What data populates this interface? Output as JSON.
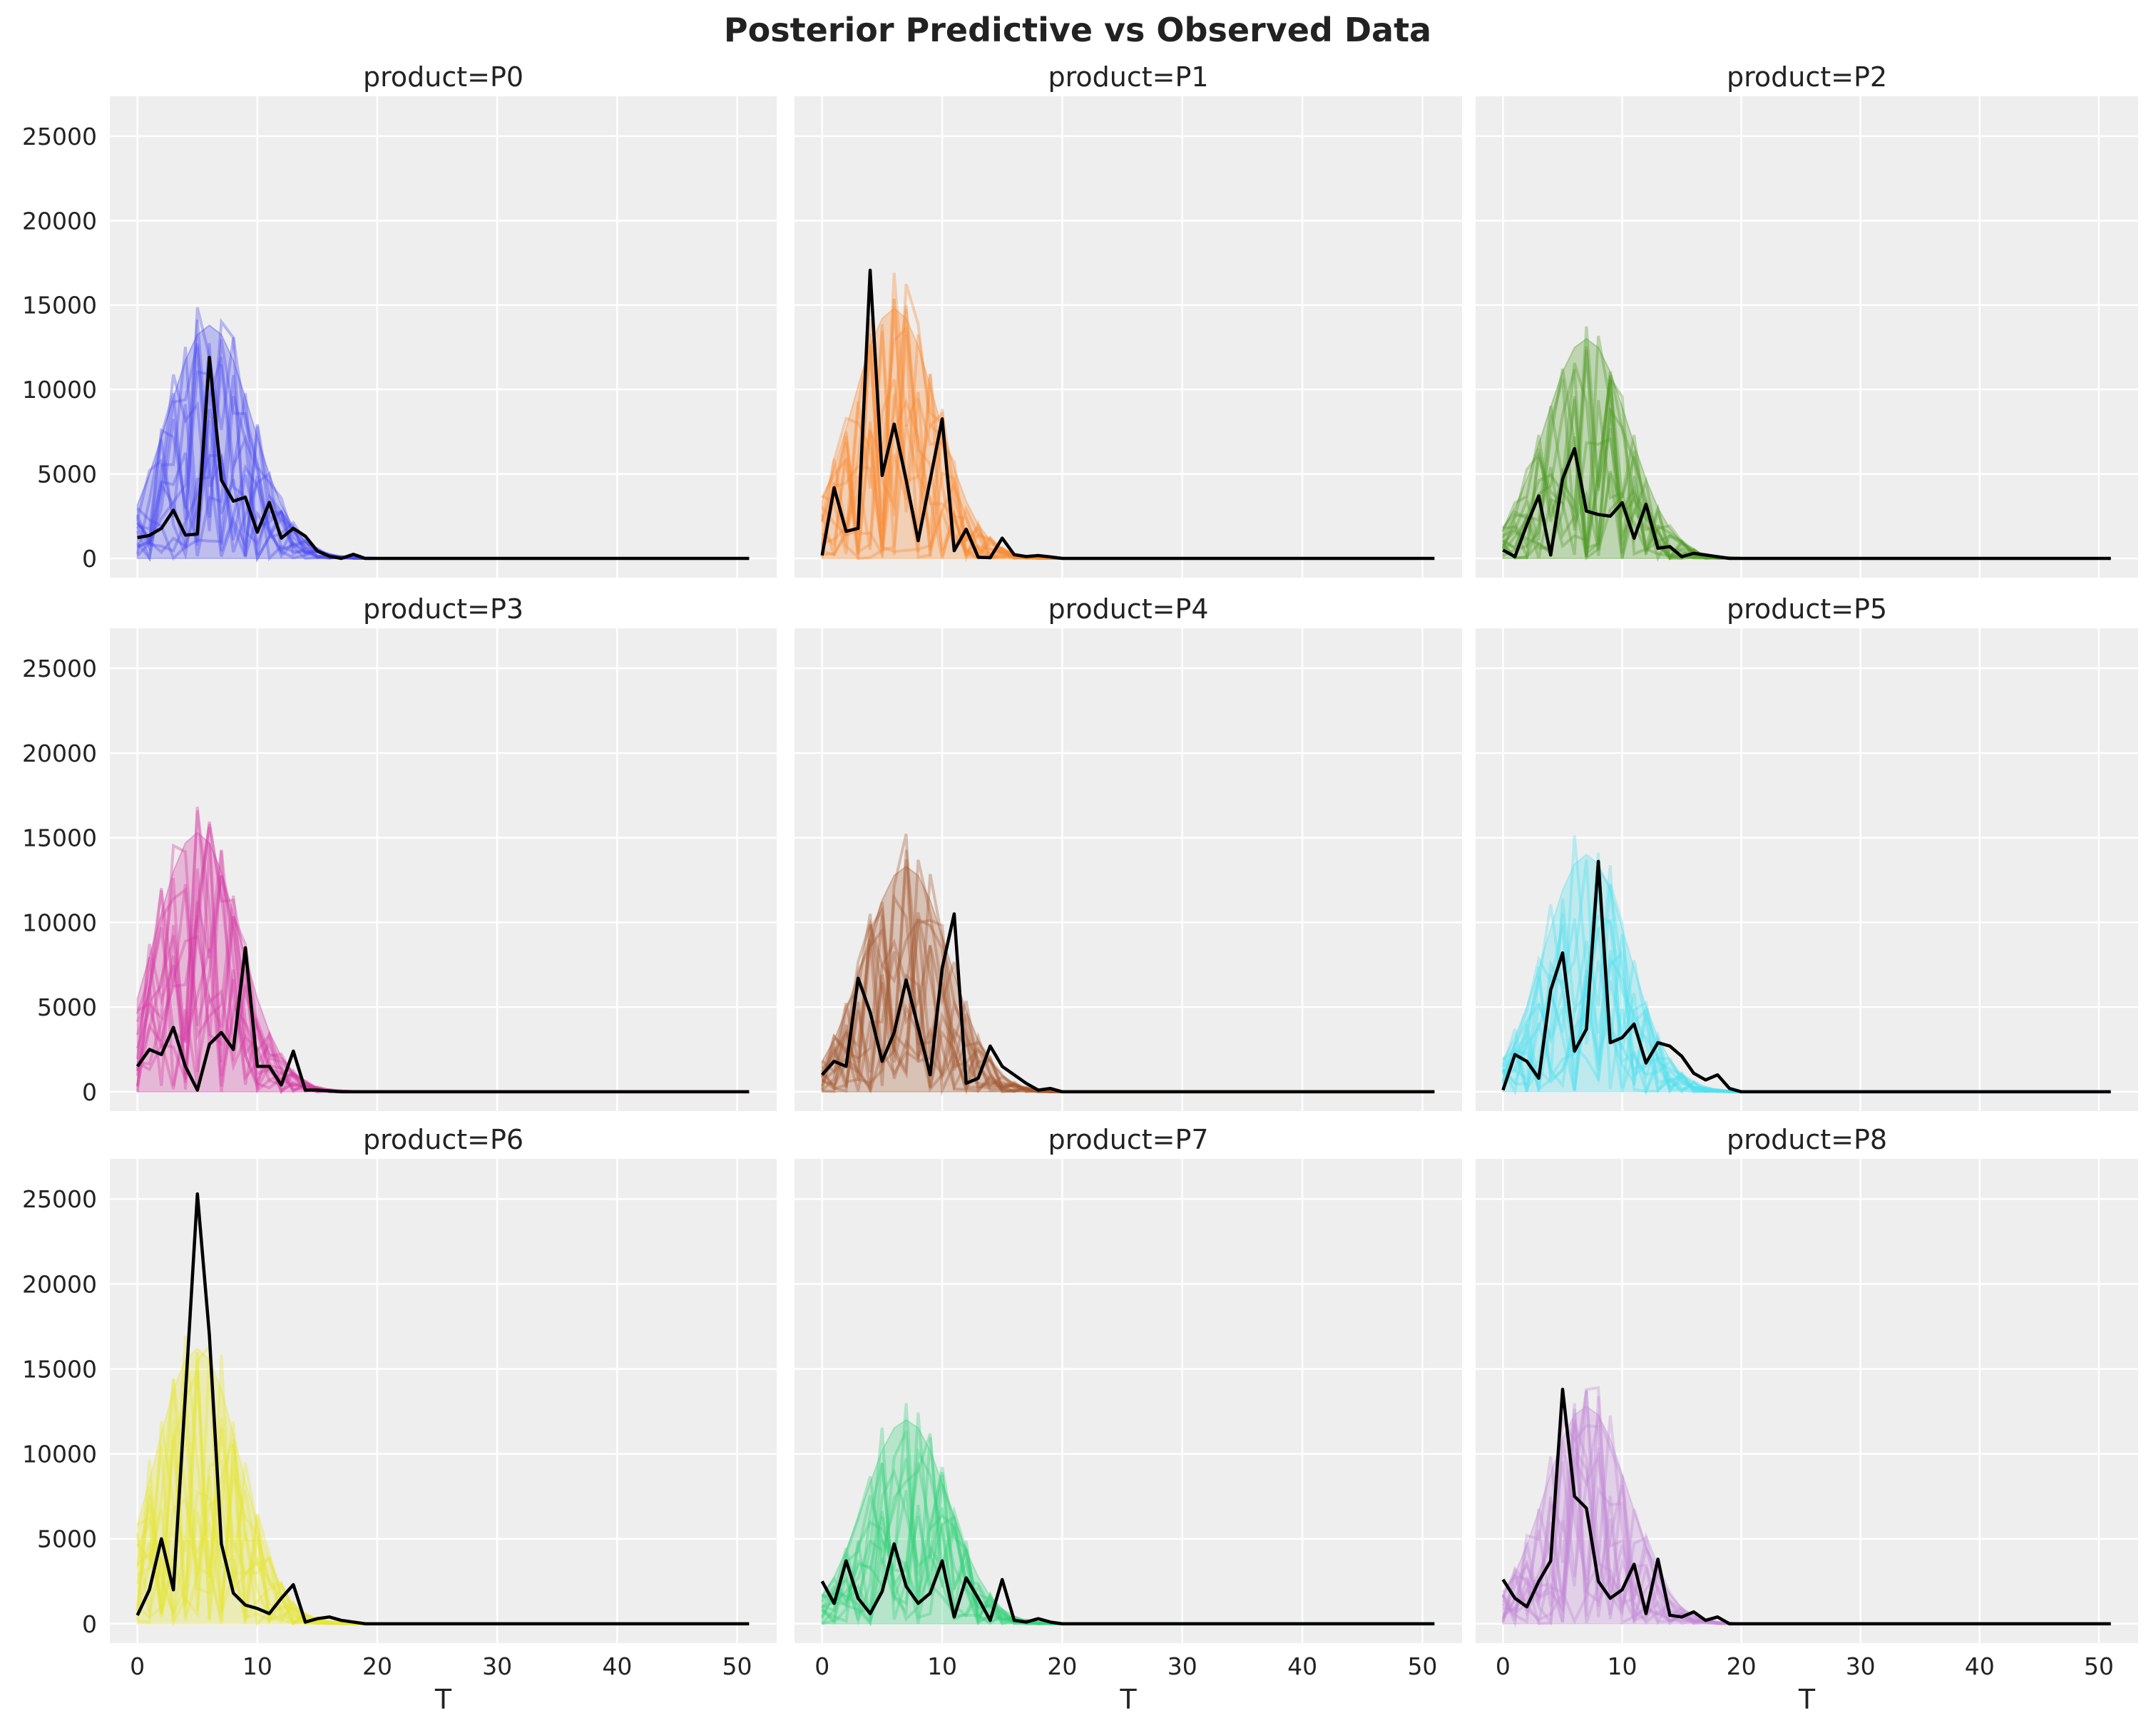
{
  "chart_data": {
    "type": "line",
    "title": "Posterior Predictive vs Observed Data",
    "xlabel": "T",
    "xlim": [
      -2.3,
      53.3
    ],
    "ylim": [
      -1140,
      27360
    ],
    "x_ticks": [
      "0",
      "10",
      "20",
      "30",
      "40",
      "50"
    ],
    "y_ticks": [
      "0",
      "5000",
      "10000",
      "15000",
      "20000",
      "25000"
    ],
    "grid": true,
    "observed_color": "#000000",
    "background_color": "#eeeeee",
    "t": [
      0,
      1,
      2,
      3,
      4,
      5,
      6,
      7,
      8,
      9,
      10,
      11,
      12,
      13,
      14,
      15,
      16,
      17,
      18,
      19,
      20,
      21,
      22,
      23,
      24,
      25,
      26,
      27,
      28,
      29,
      30,
      31,
      32,
      33,
      34,
      35,
      36,
      37,
      38,
      39,
      40,
      41,
      42,
      43,
      44,
      45,
      46,
      47,
      48,
      49,
      50,
      51
    ],
    "panels": [
      {
        "title": "product=P0",
        "color": "#4b4bf0",
        "observed": [
          1230,
          1360,
          1780,
          2850,
          1380,
          1440,
          11900,
          4640,
          3390,
          3620,
          1550,
          3310,
          1200,
          1780,
          1320,
          440,
          130,
          0,
          240,
          0,
          0,
          0,
          0,
          0,
          0,
          0,
          0,
          0,
          0,
          0,
          0,
          0,
          0,
          0,
          0,
          0,
          0,
          0,
          0,
          0,
          0,
          0,
          0,
          0,
          0,
          0,
          0,
          0,
          0,
          0,
          0,
          0
        ],
        "hdi_upper": [
          3170,
          4970,
          7180,
          9520,
          11730,
          13250,
          13800,
          13250,
          11730,
          9520,
          7180,
          4970,
          3170,
          1860,
          1000,
          510,
          230,
          100,
          40,
          15,
          0
        ]
      },
      {
        "title": "product=P1",
        "color": "#fa8a32",
        "observed": [
          180,
          4180,
          1600,
          1780,
          17060,
          4910,
          7950,
          4640,
          1050,
          4640,
          8260,
          460,
          1730,
          70,
          40,
          1200,
          220,
          110,
          170,
          90,
          0,
          0,
          0,
          0,
          0,
          0,
          0,
          0,
          0,
          0,
          0,
          0,
          0,
          0,
          0,
          0,
          0,
          0,
          0,
          0,
          0,
          0,
          0,
          0,
          0,
          0,
          0,
          0,
          0,
          0,
          0,
          0
        ],
        "hdi_upper": [
          3400,
          5330,
          7700,
          10210,
          12580,
          14210,
          14800,
          14210,
          12580,
          10210,
          7700,
          5330,
          3400,
          2000,
          1080,
          550,
          250,
          100,
          45,
          15,
          0
        ]
      },
      {
        "title": "product=P2",
        "color": "#4f9a26",
        "observed": [
          500,
          100,
          2000,
          3700,
          200,
          4700,
          6500,
          2800,
          2600,
          2500,
          3300,
          1200,
          3200,
          600,
          700,
          100,
          300,
          200,
          100,
          0,
          0,
          0,
          0,
          0,
          0,
          0,
          0,
          0,
          0,
          0,
          0,
          0,
          0,
          0,
          0,
          0,
          0,
          0,
          0,
          0,
          0,
          0,
          0,
          0,
          0,
          0,
          0,
          0,
          0,
          0,
          0,
          0
        ],
        "hdi_upper": [
          1760,
          2990,
          4680,
          6760,
          8970,
          11050,
          12480,
          13000,
          12480,
          11050,
          8970,
          6760,
          4680,
          2990,
          1760,
          950,
          480,
          220,
          90,
          40,
          0
        ]
      },
      {
        "title": "product=P3",
        "color": "#d33aa2",
        "observed": [
          1500,
          2500,
          2200,
          3800,
          1500,
          100,
          2800,
          3500,
          2500,
          8500,
          1500,
          1500,
          400,
          2400,
          100,
          100,
          50,
          0,
          0,
          0,
          0,
          0,
          0,
          0,
          0,
          0,
          0,
          0,
          0,
          0,
          0,
          0,
          0,
          0,
          0,
          0,
          0,
          0,
          0,
          0,
          0,
          0,
          0,
          0,
          0,
          0,
          0,
          0,
          0,
          0,
          0,
          0
        ],
        "hdi_upper": [
          5510,
          7960,
          10560,
          13010,
          14690,
          15300,
          14690,
          13010,
          10560,
          7960,
          5510,
          3520,
          2070,
          1120,
          570,
          260,
          110,
          45,
          15,
          0
        ]
      },
      {
        "title": "product=P4",
        "color": "#a45a32",
        "observed": [
          1000,
          1800,
          1500,
          6700,
          4700,
          1800,
          3500,
          6600,
          3800,
          1000,
          7300,
          10500,
          500,
          800,
          2700,
          1500,
          1000,
          500,
          100,
          200,
          0,
          0,
          0,
          0,
          0,
          0,
          0,
          0,
          0,
          0,
          0,
          0,
          0,
          0,
          0,
          0,
          0,
          0,
          0,
          0,
          0,
          0,
          0,
          0,
          0,
          0,
          0,
          0,
          0,
          0,
          0,
          0
        ],
        "hdi_upper": [
          1800,
          3060,
          4790,
          6920,
          9180,
          11310,
          12770,
          13300,
          12770,
          11310,
          9180,
          6920,
          4790,
          3060,
          1800,
          970,
          490,
          230,
          100,
          40,
          0
        ]
      },
      {
        "title": "product=P5",
        "color": "#4fe0ee",
        "observed": [
          100,
          2200,
          1800,
          800,
          6000,
          8200,
          2400,
          3700,
          13600,
          2900,
          3200,
          4000,
          1700,
          2900,
          2700,
          2100,
          1100,
          700,
          1000,
          200,
          0,
          0,
          0,
          0,
          0,
          0,
          0,
          0,
          0,
          0,
          0,
          0,
          0,
          0,
          0,
          0,
          0,
          0,
          0,
          0,
          0,
          0,
          0,
          0,
          0,
          0,
          0,
          0,
          0,
          0,
          0,
          0
        ],
        "hdi_upper": [
          1890,
          3220,
          5040,
          7280,
          9660,
          11900,
          13440,
          14000,
          13440,
          11900,
          9660,
          7280,
          5040,
          3220,
          1890,
          1020,
          520,
          240,
          100,
          40,
          0
        ]
      },
      {
        "title": "product=P6",
        "color": "#e6e633",
        "observed": [
          500,
          2000,
          5000,
          2000,
          13500,
          25300,
          17000,
          4700,
          1800,
          1100,
          900,
          600,
          1500,
          2300,
          100,
          300,
          400,
          200,
          100,
          0,
          0,
          0,
          0,
          0,
          0,
          0,
          0,
          0,
          0,
          0,
          0,
          0,
          0,
          0,
          0,
          0,
          0,
          0,
          0,
          0,
          0,
          0,
          0,
          0,
          0,
          0,
          0,
          0,
          0,
          0,
          0,
          0
        ],
        "hdi_upper": [
          5830,
          8420,
          11180,
          13770,
          15550,
          16200,
          15550,
          13770,
          11180,
          8420,
          5830,
          3730,
          2190,
          1180,
          600,
          280,
          110,
          50,
          15,
          0
        ]
      },
      {
        "title": "product=P7",
        "color": "#36d07a",
        "observed": [
          2500,
          1200,
          3700,
          1500,
          600,
          1900,
          4700,
          2200,
          1200,
          1800,
          3700,
          400,
          2700,
          1500,
          200,
          2600,
          200,
          100,
          300,
          100,
          0,
          0,
          0,
          0,
          0,
          0,
          0,
          0,
          0,
          0,
          0,
          0,
          0,
          0,
          0,
          0,
          0,
          0,
          0,
          0,
          0,
          0,
          0,
          0,
          0,
          0,
          0,
          0,
          0,
          0,
          0,
          0
        ],
        "hdi_upper": [
          1620,
          2760,
          4320,
          6240,
          8280,
          10200,
          11520,
          12000,
          11520,
          10200,
          8280,
          6240,
          4320,
          2760,
          1620,
          880,
          440,
          200,
          80,
          30,
          0
        ]
      },
      {
        "title": "product=P8",
        "color": "#c38ad8",
        "observed": [
          2600,
          1500,
          1000,
          2500,
          3700,
          13800,
          7500,
          6800,
          2500,
          1500,
          2000,
          3500,
          600,
          3800,
          500,
          400,
          700,
          200,
          400,
          0,
          0,
          0,
          0,
          0,
          0,
          0,
          0,
          0,
          0,
          0,
          0,
          0,
          0,
          0,
          0,
          0,
          0,
          0,
          0,
          0,
          0,
          0,
          0,
          0,
          0,
          0,
          0,
          0,
          0,
          0,
          0,
          0
        ],
        "hdi_upper": [
          1730,
          2940,
          4610,
          6660,
          8830,
          10880,
          12290,
          12800,
          12290,
          10880,
          8830,
          6660,
          4610,
          2940,
          1730,
          940,
          470,
          220,
          90,
          35,
          0
        ]
      }
    ]
  }
}
